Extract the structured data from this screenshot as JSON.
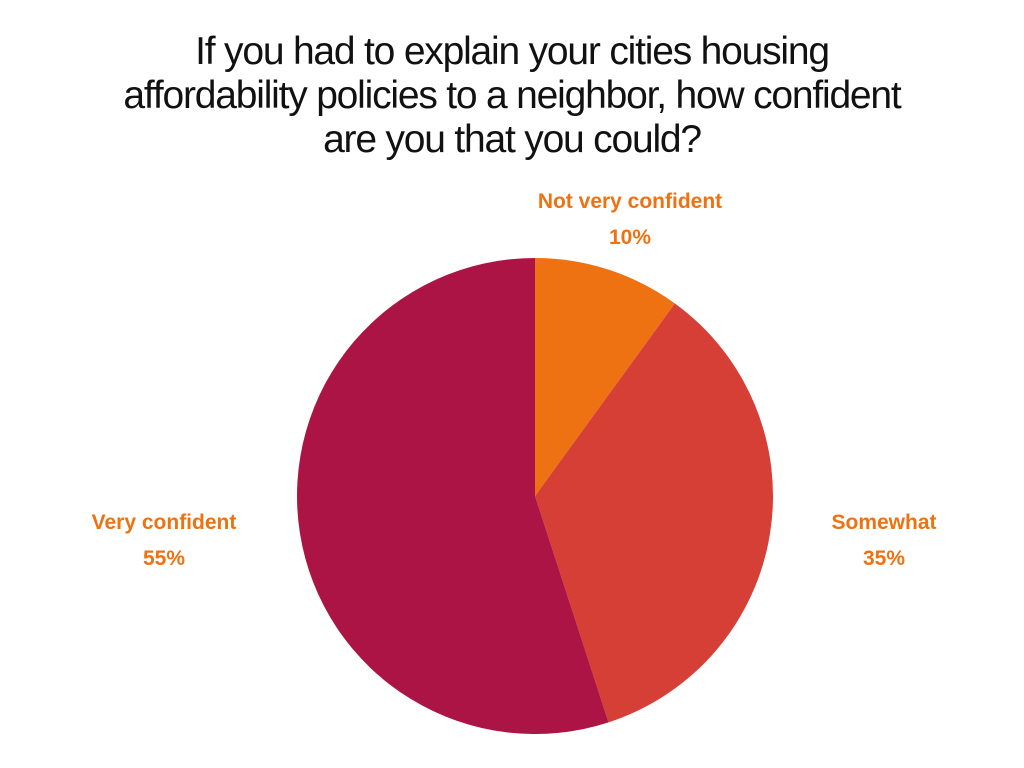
{
  "chart_data": {
    "type": "pie",
    "title": "If you had to explain your cities housing affordability policies to a neighbor, how confident are you that you could?",
    "title_lines": [
      "If you had to explain your cities housing",
      "affordability policies to a neighbor, how confident",
      "are you that you could?"
    ],
    "categories": [
      "Not very confident",
      "Somewhat",
      "Very confident"
    ],
    "values": [
      10,
      35,
      55
    ],
    "value_labels": [
      "10%",
      "35%",
      "55%"
    ],
    "colors": [
      "#EE7212",
      "#D63F36",
      "#AC1445"
    ],
    "label_color": "#EE7212",
    "start_angle": "12 o'clock",
    "direction": "clockwise",
    "legend": "none (direct labels)"
  }
}
